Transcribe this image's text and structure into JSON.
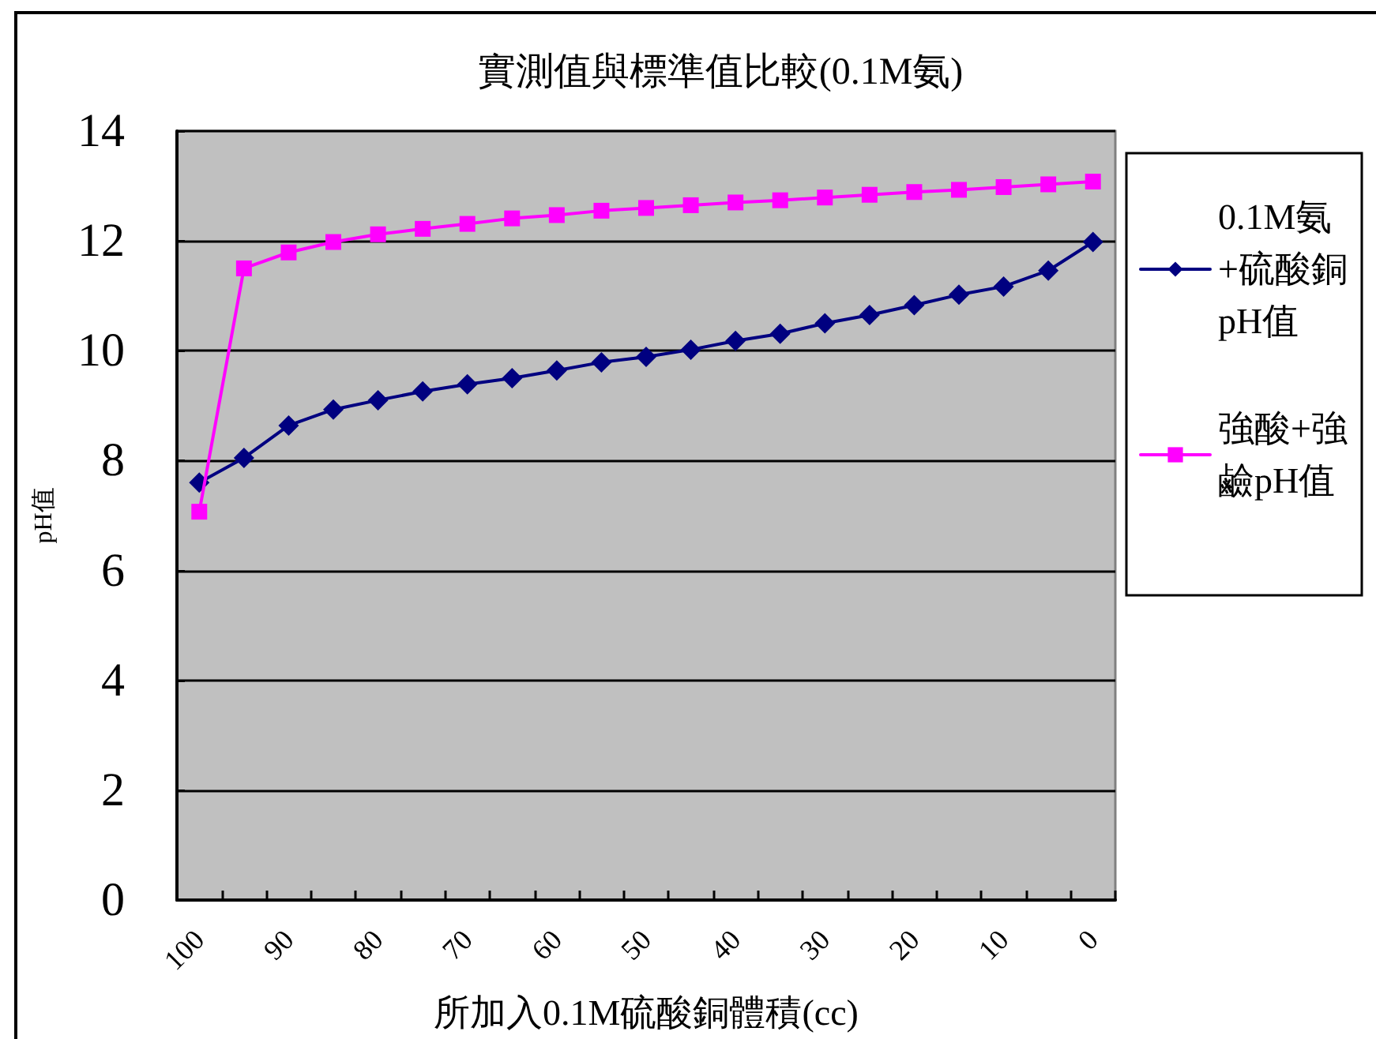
{
  "chart_data": {
    "type": "line",
    "title": "實測值與標準值比較(0.1M氨)",
    "xlabel": "所加入0.1M硫酸銅體積(cc)",
    "ylabel": "pH值",
    "categories": [
      "100",
      null,
      "90",
      null,
      "80",
      null,
      "70",
      null,
      "60",
      null,
      "50",
      null,
      "40",
      null,
      "30",
      null,
      "20",
      null,
      "10",
      null,
      "0"
    ],
    "series": [
      {
        "name": "0.1M氨+硫酸銅pH值",
        "color": "#000080",
        "marker": "diamond",
        "values": [
          7.6,
          8.05,
          8.64,
          8.93,
          9.1,
          9.26,
          9.39,
          9.5,
          9.64,
          9.79,
          9.89,
          10.02,
          10.18,
          10.31,
          10.5,
          10.65,
          10.83,
          11.02,
          11.17,
          11.46,
          11.98
        ]
      },
      {
        "name": "強酸+強鹼pH值",
        "color": "#ff00ff",
        "marker": "square",
        "values": [
          7.07,
          11.5,
          11.79,
          11.98,
          12.12,
          12.22,
          12.31,
          12.41,
          12.47,
          12.55,
          12.6,
          12.65,
          12.7,
          12.74,
          12.79,
          12.84,
          12.89,
          12.93,
          12.98,
          13.03,
          13.08
        ]
      }
    ],
    "ylim": [
      0,
      14
    ],
    "yticks": [
      0,
      2,
      4,
      6,
      8,
      10,
      12,
      14
    ],
    "grid": "y",
    "legend": "right",
    "line_style": "solid"
  }
}
